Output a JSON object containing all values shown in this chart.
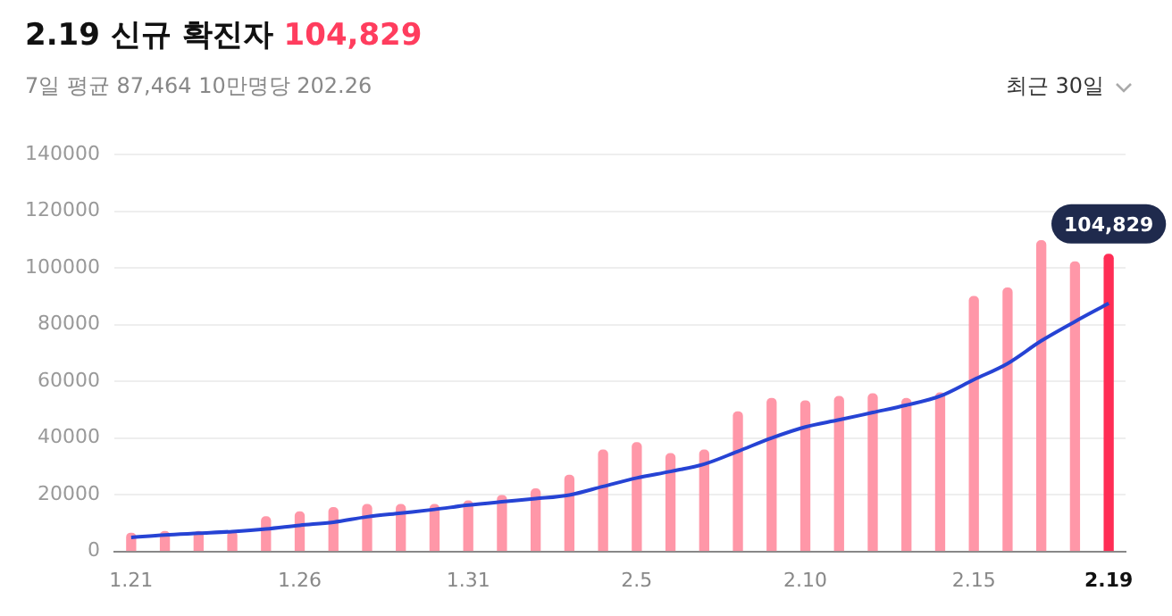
{
  "chart_data": {
    "type": "bar",
    "title": "2.19 신규 확진자 104,829",
    "subtitle": "7일 평균 87,464  10만명당 202.26",
    "categories": [
      "1.21",
      null,
      null,
      null,
      null,
      "1.26",
      null,
      null,
      null,
      null,
      "1.31",
      null,
      null,
      null,
      null,
      "2.5",
      null,
      null,
      null,
      null,
      "2.10",
      null,
      null,
      null,
      null,
      "2.15",
      null,
      null,
      null,
      "2.19"
    ],
    "series": [
      {
        "colors": [
          "#ff97a8",
          "#ff97a8",
          "#ff97a8",
          "#ff97a8",
          "#ff97a8",
          "#ff97a8",
          "#ff97a8",
          "#ff97a8",
          "#ff97a8",
          "#ff97a8",
          "#ff97a8",
          "#ff97a8",
          "#ff97a8",
          "#ff97a8",
          "#ff97a8",
          "#ff97a8",
          "#ff97a8",
          "#ff97a8",
          "#ff97a8",
          "#ff97a8",
          "#ff97a8",
          "#ff97a8",
          "#ff97a8",
          "#ff97a8",
          "#ff97a8",
          "#ff97a8",
          "#ff97a8",
          "#ff97a8",
          "#ff97a8",
          "#ff2d55"
        ],
        "values": [
          6400,
          7000,
          7000,
          7000,
          12200,
          13900,
          15400,
          16500,
          16500,
          16500,
          17800,
          19700,
          22000,
          26800,
          35700,
          38300,
          34500,
          35700,
          49200,
          53900,
          53100,
          54600,
          55600,
          53900,
          55900,
          89900,
          92900,
          109600,
          102100,
          104829
        ]
      },
      {
        "type": "line",
        "color": "#2643d4",
        "values": [
          4900,
          5800,
          6400,
          7000,
          7900,
          9200,
          10300,
          12200,
          13500,
          14800,
          16300,
          17500,
          18600,
          19900,
          22900,
          25900,
          28200,
          30800,
          35300,
          40000,
          43900,
          46400,
          49000,
          51600,
          54800,
          60600,
          66300,
          74300,
          81100,
          87500
        ]
      }
    ],
    "ylim": [
      0,
      140000
    ],
    "yticks": [
      0,
      20000,
      40000,
      60000,
      80000,
      100000,
      120000,
      140000
    ],
    "grid": "y",
    "legend": false,
    "marker": "none",
    "line_style": "solid",
    "annotations": [
      {
        "text": "104,829",
        "x": "2.19",
        "y": 104829
      },
      "최근 30일"
    ]
  }
}
